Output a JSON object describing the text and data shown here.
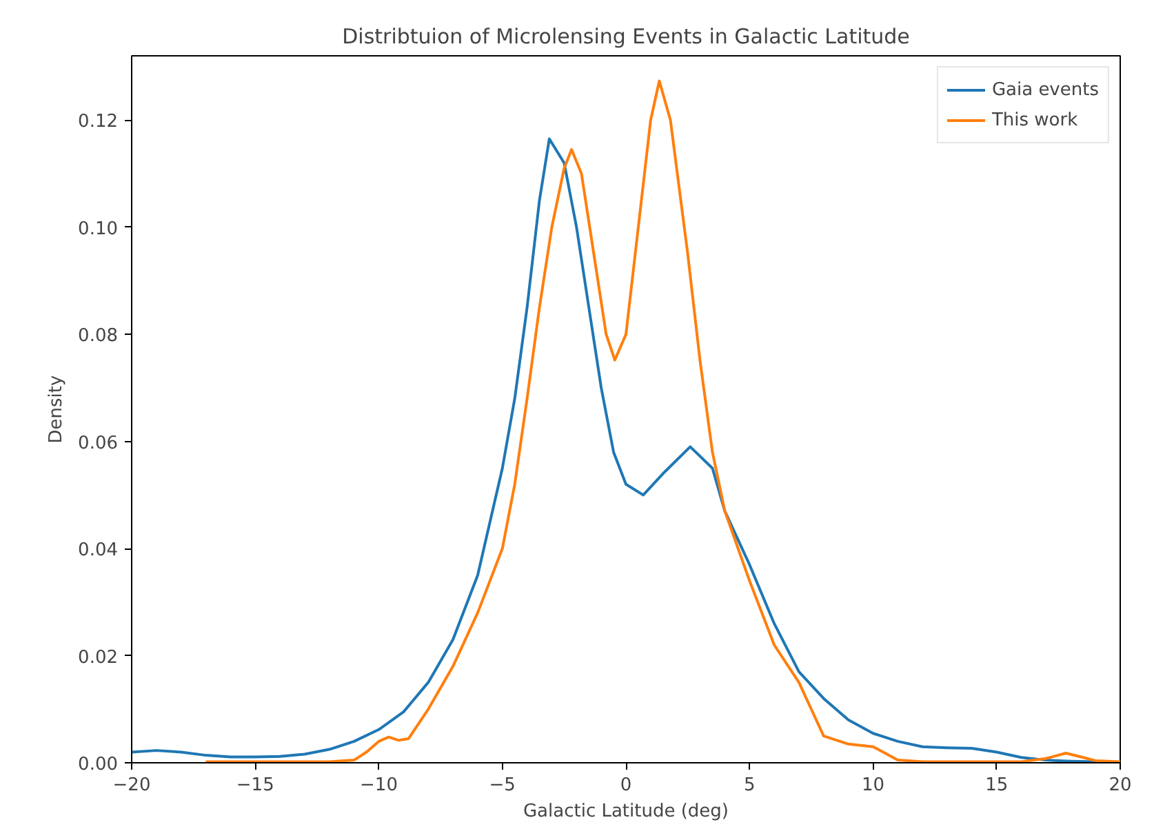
{
  "chart_data": {
    "type": "line",
    "title": "Distribtuion of Microlensing Events in Galactic Latitude",
    "xlabel": "Galactic Latitude (deg)",
    "ylabel": "Density",
    "xlim": [
      -20,
      20
    ],
    "ylim": [
      0,
      0.132
    ],
    "xticks": [
      -20,
      -15,
      -10,
      -5,
      0,
      5,
      10,
      15,
      20
    ],
    "yticks": [
      {
        "value": 0,
        "label": "0.00"
      },
      {
        "value": 0.02,
        "label": "0.02"
      },
      {
        "value": 0.04,
        "label": "0.04"
      },
      {
        "value": 0.06,
        "label": "0.06"
      },
      {
        "value": 0.08,
        "label": "0.08"
      },
      {
        "value": 0.1,
        "label": "0.10"
      },
      {
        "value": 0.12,
        "label": "0.12"
      }
    ],
    "grid": false,
    "legend": "top right",
    "marker": "none",
    "line_style": "solid",
    "series": [
      {
        "name": "Gaia events",
        "color": "#1f77b4",
        "x": [
          -20,
          -19,
          -18,
          -17,
          -16,
          -15,
          -14,
          -13,
          -12,
          -11,
          -10,
          -9,
          -8,
          -7,
          -6,
          -5,
          -4.5,
          -4,
          -3.5,
          -3.1,
          -2.5,
          -2,
          -1.5,
          -1,
          -0.5,
          0,
          0.7,
          1.5,
          2.6,
          3.5,
          4,
          5,
          6,
          7,
          8,
          9,
          10,
          11,
          12,
          13,
          14,
          15,
          16,
          17,
          18,
          19,
          20
        ],
        "values": [
          0.002,
          0.0023,
          0.002,
          0.0014,
          0.0011,
          0.0011,
          0.0012,
          0.0016,
          0.0025,
          0.004,
          0.0062,
          0.0095,
          0.015,
          0.023,
          0.035,
          0.055,
          0.068,
          0.085,
          0.105,
          0.1165,
          0.112,
          0.1,
          0.085,
          0.07,
          0.058,
          0.052,
          0.05,
          0.054,
          0.059,
          0.055,
          0.047,
          0.037,
          0.026,
          0.017,
          0.012,
          0.008,
          0.0055,
          0.004,
          0.003,
          0.0028,
          0.0027,
          0.002,
          0.001,
          0.0005,
          0.0003,
          0.0002,
          0.0
        ]
      },
      {
        "name": "This work",
        "color": "#ff7f0e",
        "x": [
          -17,
          -12,
          -11,
          -10.5,
          -10,
          -9.6,
          -9.2,
          -8.8,
          -8,
          -7,
          -6,
          -5,
          -4.5,
          -4,
          -3.5,
          -3,
          -2.5,
          -2.2,
          -1.8,
          -1.2,
          -0.8,
          -0.45,
          0,
          0.5,
          1,
          1.35,
          1.8,
          2.5,
          3,
          3.5,
          4,
          5,
          6,
          7,
          7.5,
          8,
          9,
          10,
          11,
          12,
          16,
          17,
          17.8,
          18.5,
          19,
          20
        ],
        "values": [
          0.0002,
          0.0002,
          0.0005,
          0.002,
          0.004,
          0.0048,
          0.0042,
          0.0045,
          0.01,
          0.018,
          0.028,
          0.04,
          0.052,
          0.068,
          0.085,
          0.1,
          0.111,
          0.1145,
          0.11,
          0.092,
          0.08,
          0.0752,
          0.08,
          0.1,
          0.12,
          0.1273,
          0.12,
          0.095,
          0.075,
          0.058,
          0.047,
          0.034,
          0.022,
          0.015,
          0.01,
          0.005,
          0.0035,
          0.003,
          0.0005,
          0.0002,
          0.0002,
          0.0008,
          0.0018,
          0.001,
          0.0004,
          0.0002
        ]
      }
    ]
  }
}
